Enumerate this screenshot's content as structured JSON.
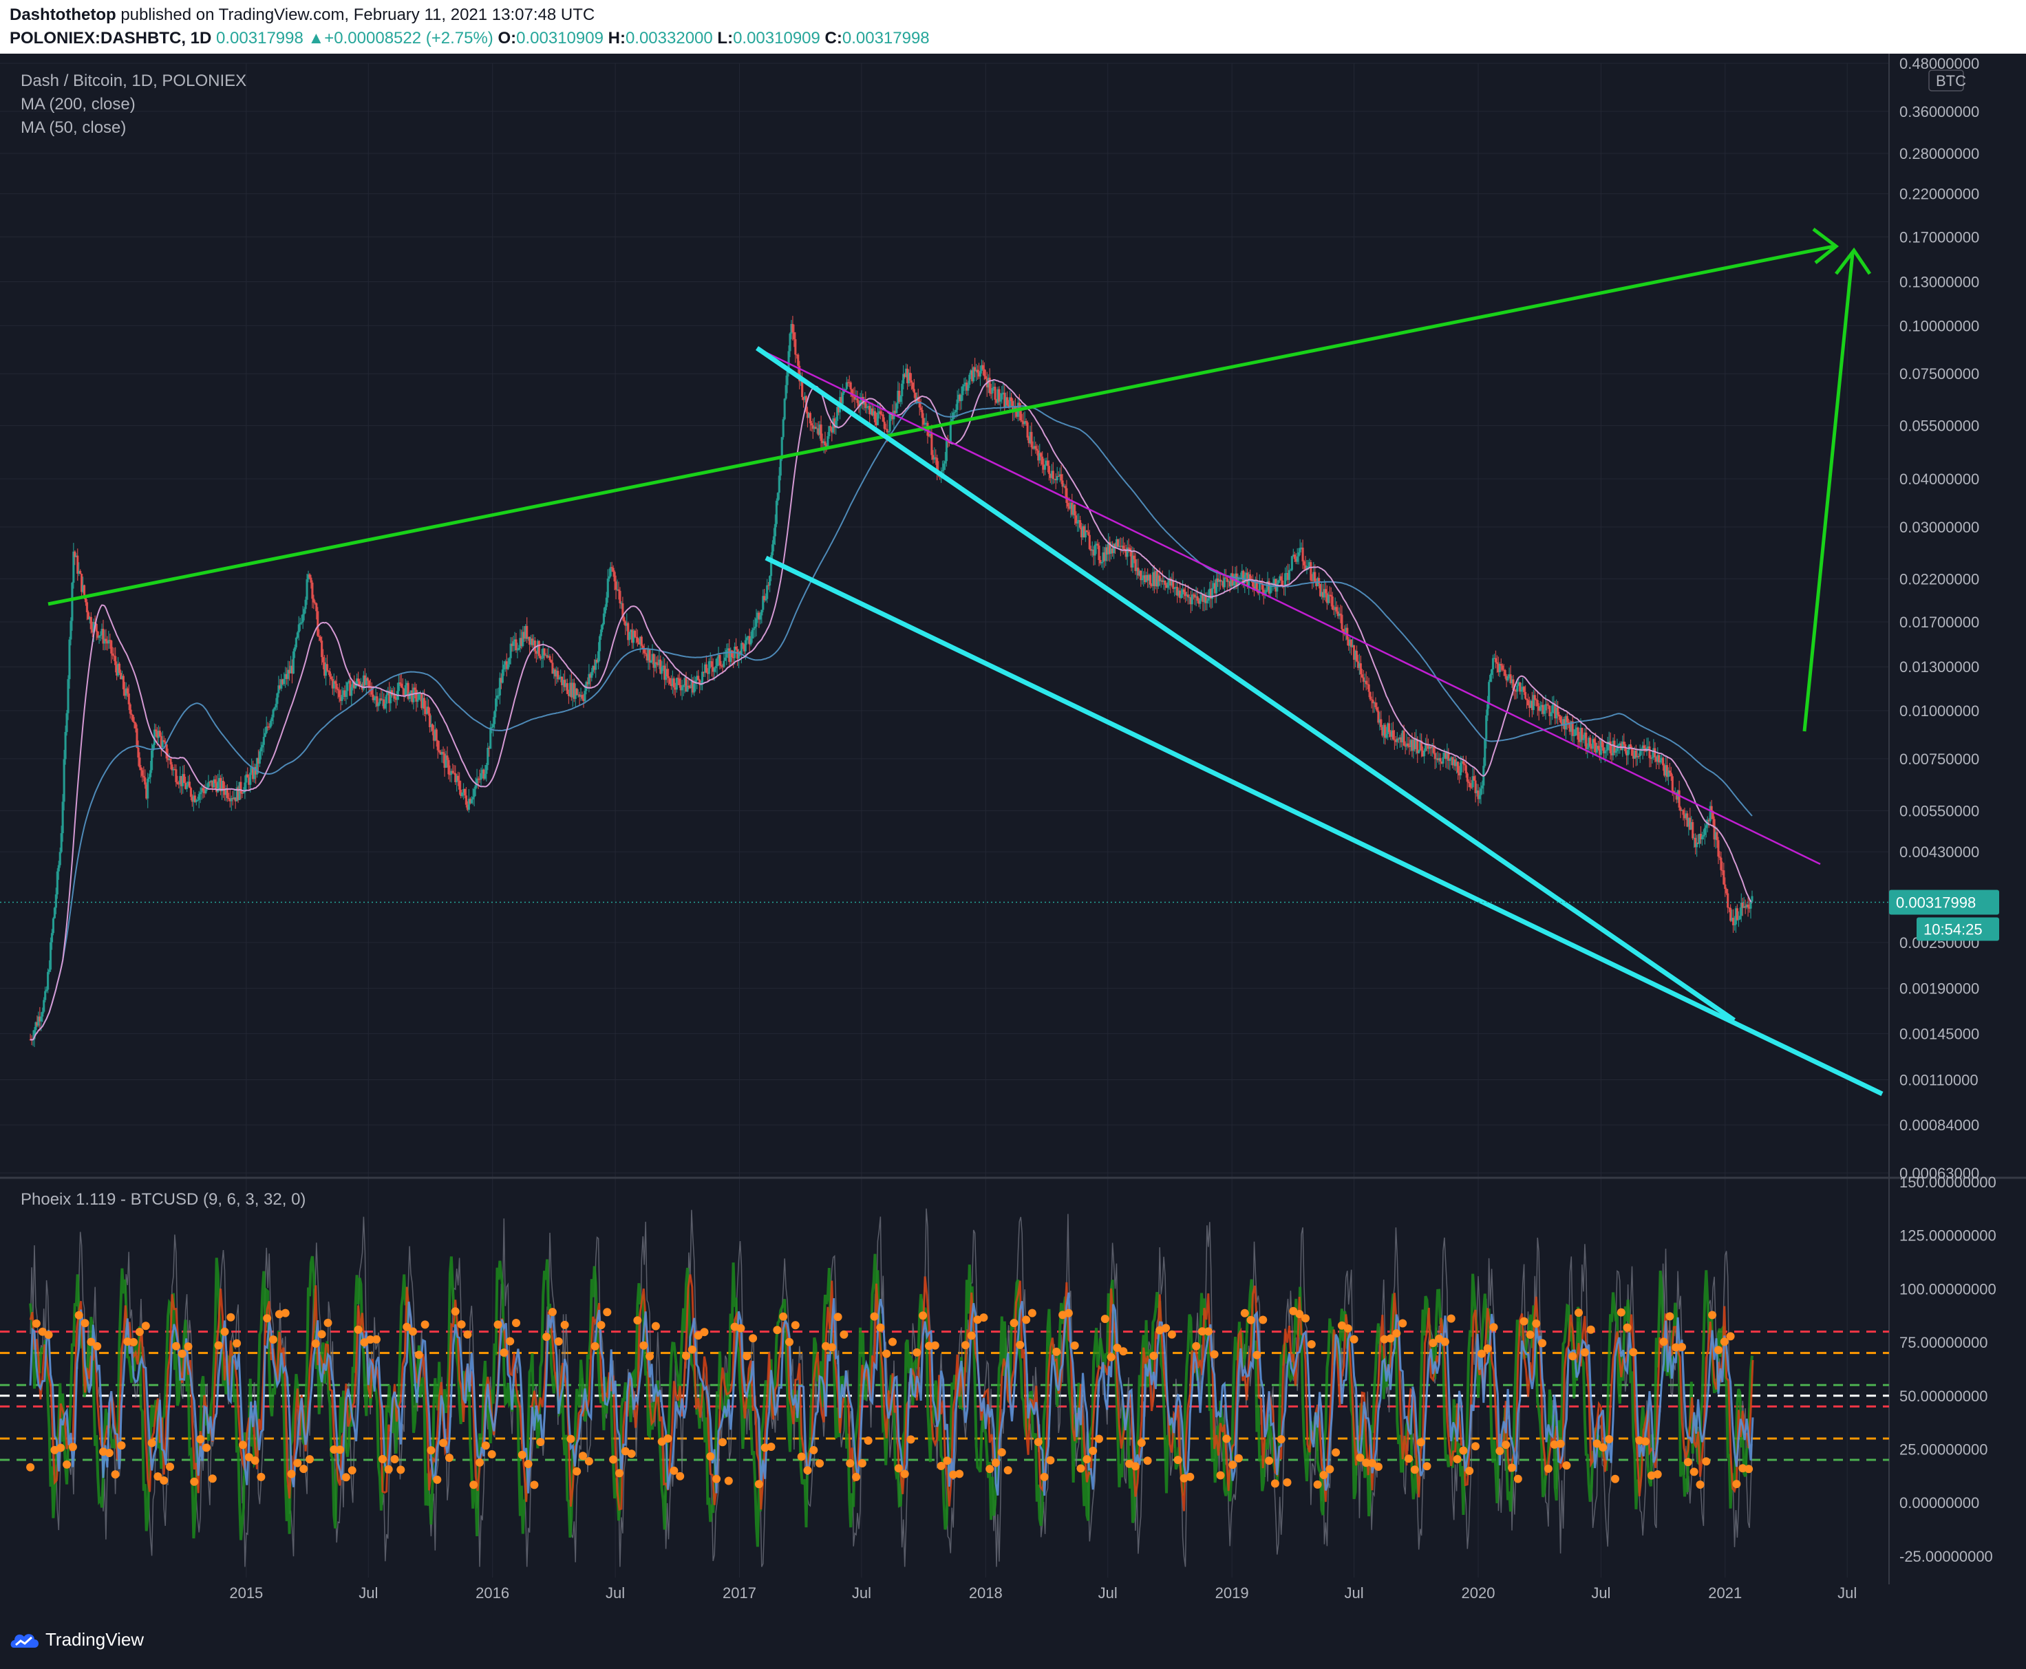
{
  "header": {
    "publisher": "Dashtothetop",
    "published_text": "published on TradingView.com, February 11, 2021 13:07:48 UTC",
    "symbol": "POLONIEX:DASHBTC, 1D",
    "last": "0.00317998",
    "change": "+0.00008522 (+2.75%)",
    "o_label": "O:",
    "o_value": "0.00310909",
    "h_label": "H:",
    "h_value": "0.00332000",
    "l_label": "L:",
    "l_value": "0.00310909",
    "c_label": "C:",
    "c_value": "0.00317998"
  },
  "legend": {
    "title": "Dash / Bitcoin, 1D, POLONIEX",
    "ma200": "MA (200, close)",
    "ma50": "MA (50, close)",
    "oscillator": "Phoeix 1.119 - BTCUSD (9, 6, 3, 32, 0)"
  },
  "price_axis": {
    "currency_badge": "BTC",
    "ticks": [
      "0.48000000",
      "0.36000000",
      "0.28000000",
      "0.22000000",
      "0.17000000",
      "0.13000000",
      "0.10000000",
      "0.07500000",
      "0.05500000",
      "0.04000000",
      "0.03000000",
      "0.02200000",
      "0.01700000",
      "0.01300000",
      "0.01000000",
      "0.00750000",
      "0.00550000",
      "0.00430000",
      "0.00250000",
      "0.00190000",
      "0.00145000",
      "0.00110000",
      "0.00084000",
      "0.00063000"
    ],
    "last_price_label": "0.00317998",
    "countdown_label": "10:54:25"
  },
  "osc_axis": {
    "ticks": [
      "150.00000000",
      "125.00000000",
      "100.00000000",
      "75.00000000",
      "50.00000000",
      "25.00000000",
      "0.00000000",
      "-25.00000000"
    ]
  },
  "time_axis": {
    "ticks": [
      "2015",
      "Jul",
      "2016",
      "Jul",
      "2017",
      "Jul",
      "2018",
      "Jul",
      "2019",
      "Jul",
      "2020",
      "Jul",
      "2021",
      "Jul"
    ]
  },
  "footer": {
    "brand": "TradingView"
  },
  "colors": {
    "background": "#161a25",
    "grid": "#232734",
    "up": "#26a69a",
    "down": "#ef5350",
    "ma200": "#4e8ab8",
    "ma50": "#d59ad4",
    "trend_green": "#19d219",
    "wedge_cyan": "#2ee8ec",
    "resistance_magenta": "#c21fd3"
  },
  "chart_data": [
    {
      "type": "candlestick",
      "title": "Dash / Bitcoin, 1D, POLONIEX",
      "scale": "log",
      "ylim": [
        0.00063,
        0.48
      ],
      "x_range": [
        "2014-02",
        "2021-08"
      ],
      "series": [
        {
          "name": "DASHBTC close (approx.)",
          "points": [
            [
              "2014-02-15",
              0.0014
            ],
            [
              "2014-03-10",
              0.0018
            ],
            [
              "2014-04-01",
              0.0045
            ],
            [
              "2014-04-20",
              0.026
            ],
            [
              "2014-05-15",
              0.017
            ],
            [
              "2014-06-10",
              0.015
            ],
            [
              "2014-07-15",
              0.01
            ],
            [
              "2014-08-05",
              0.006
            ],
            [
              "2014-08-20",
              0.009
            ],
            [
              "2014-09-15",
              0.007
            ],
            [
              "2014-10-15",
              0.006
            ],
            [
              "2014-11-15",
              0.0065
            ],
            [
              "2014-12-15",
              0.006
            ],
            [
              "2015-01-15",
              0.007
            ],
            [
              "2015-02-15",
              0.011
            ],
            [
              "2015-03-10",
              0.013
            ],
            [
              "2015-04-05",
              0.023
            ],
            [
              "2015-04-25",
              0.013
            ],
            [
              "2015-05-20",
              0.011
            ],
            [
              "2015-06-20",
              0.012
            ],
            [
              "2015-07-20",
              0.0105
            ],
            [
              "2015-08-20",
              0.0115
            ],
            [
              "2015-09-20",
              0.0105
            ],
            [
              "2015-10-20",
              0.0075
            ],
            [
              "2015-11-25",
              0.0058
            ],
            [
              "2015-12-20",
              0.007
            ],
            [
              "2016-01-10",
              0.0115
            ],
            [
              "2016-01-25",
              0.014
            ],
            [
              "2016-02-20",
              0.016
            ],
            [
              "2016-03-20",
              0.0135
            ],
            [
              "2016-04-20",
              0.0115
            ],
            [
              "2016-05-15",
              0.011
            ],
            [
              "2016-06-05",
              0.014
            ],
            [
              "2016-06-25",
              0.024
            ],
            [
              "2016-07-20",
              0.016
            ],
            [
              "2016-08-20",
              0.014
            ],
            [
              "2016-09-20",
              0.012
            ],
            [
              "2016-10-20",
              0.0115
            ],
            [
              "2016-11-20",
              0.013
            ],
            [
              "2016-12-20",
              0.014
            ],
            [
              "2017-01-15",
              0.015
            ],
            [
              "2017-02-15",
              0.022
            ],
            [
              "2017-02-28",
              0.04
            ],
            [
              "2017-03-18",
              0.1
            ],
            [
              "2017-04-10",
              0.06
            ],
            [
              "2017-05-10",
              0.05
            ],
            [
              "2017-06-10",
              0.07
            ],
            [
              "2017-07-10",
              0.06
            ],
            [
              "2017-08-10",
              0.055
            ],
            [
              "2017-09-05",
              0.075
            ],
            [
              "2017-10-05",
              0.055
            ],
            [
              "2017-10-25",
              0.04
            ],
            [
              "2017-11-20",
              0.065
            ],
            [
              "2017-12-20",
              0.078
            ],
            [
              "2018-01-20",
              0.065
            ],
            [
              "2018-02-20",
              0.06
            ],
            [
              "2018-03-20",
              0.045
            ],
            [
              "2018-04-20",
              0.04
            ],
            [
              "2018-05-20",
              0.03
            ],
            [
              "2018-06-20",
              0.025
            ],
            [
              "2018-07-20",
              0.028
            ],
            [
              "2018-08-20",
              0.022
            ],
            [
              "2018-09-20",
              0.022
            ],
            [
              "2018-10-20",
              0.02
            ],
            [
              "2018-11-20",
              0.0195
            ],
            [
              "2018-12-20",
              0.022
            ],
            [
              "2019-01-20",
              0.022
            ],
            [
              "2019-02-20",
              0.0205
            ],
            [
              "2019-03-20",
              0.022
            ],
            [
              "2019-04-10",
              0.026
            ],
            [
              "2019-05-10",
              0.021
            ],
            [
              "2019-06-10",
              0.0175
            ],
            [
              "2019-07-10",
              0.013
            ],
            [
              "2019-08-10",
              0.009
            ],
            [
              "2019-09-10",
              0.0085
            ],
            [
              "2019-10-10",
              0.008
            ],
            [
              "2019-11-10",
              0.0075
            ],
            [
              "2019-12-10",
              0.007
            ],
            [
              "2020-01-05",
              0.006
            ],
            [
              "2020-01-20",
              0.0135
            ],
            [
              "2020-02-20",
              0.012
            ],
            [
              "2020-03-20",
              0.0105
            ],
            [
              "2020-04-20",
              0.01
            ],
            [
              "2020-05-20",
              0.009
            ],
            [
              "2020-06-20",
              0.008
            ],
            [
              "2020-07-20",
              0.008
            ],
            [
              "2020-08-20",
              0.0078
            ],
            [
              "2020-09-20",
              0.0078
            ],
            [
              "2020-10-20",
              0.0062
            ],
            [
              "2020-11-20",
              0.0045
            ],
            [
              "2020-12-10",
              0.0055
            ],
            [
              "2020-12-25",
              0.004
            ],
            [
              "2021-01-10",
              0.0028
            ],
            [
              "2021-01-25",
              0.0031
            ],
            [
              "2021-02-11",
              0.00318
            ]
          ]
        }
      ],
      "overlays": [
        {
          "name": "MA (200, close)"
        },
        {
          "name": "MA (50, close)"
        }
      ]
    },
    {
      "type": "line",
      "title": "Phoeix 1.119 - BTCUSD (9, 6, 3, 32, 0)",
      "ylim": [
        -35,
        150
      ],
      "reference_levels": [
        {
          "value": 80,
          "color": "#f23645"
        },
        {
          "value": 70,
          "color": "#ff9800"
        },
        {
          "value": 55,
          "color": "#4caf50"
        },
        {
          "value": 50,
          "color": "#ffffff"
        },
        {
          "value": 45,
          "color": "#f23645"
        },
        {
          "value": 30,
          "color": "#ff9800"
        },
        {
          "value": 20,
          "color": "#4caf50"
        }
      ]
    }
  ]
}
